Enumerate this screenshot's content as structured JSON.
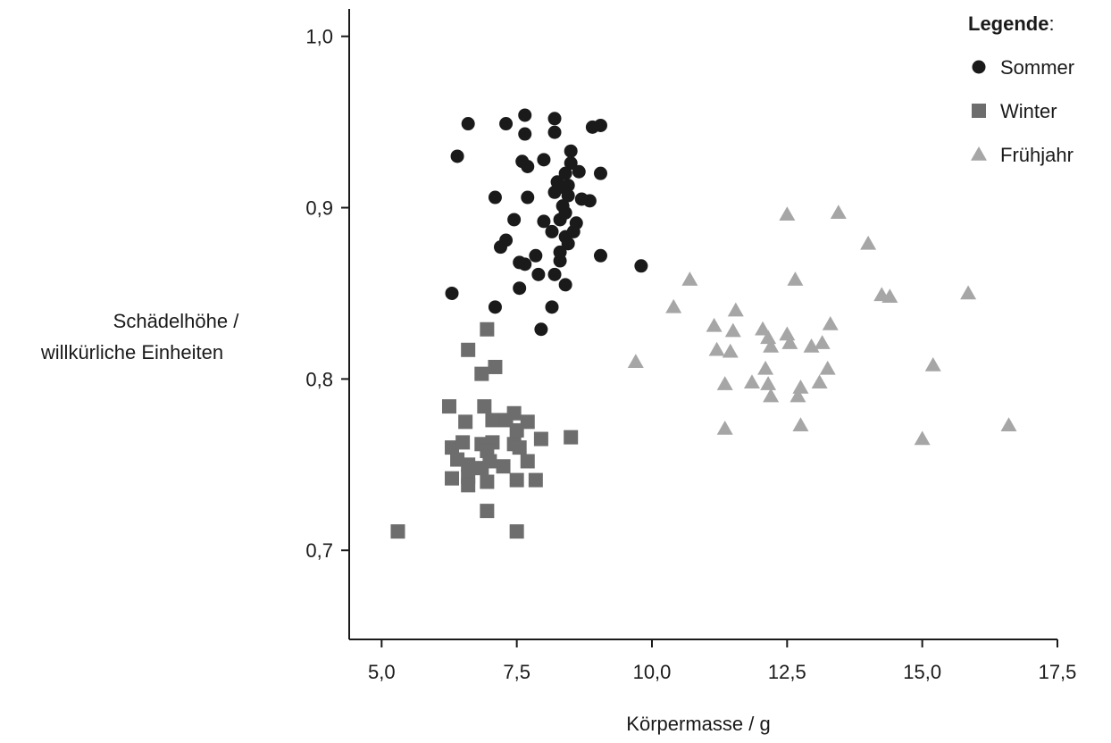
{
  "legend": {
    "title": "Legende",
    "title_suffix": ":"
  },
  "chart_data": {
    "type": "scatter",
    "xlabel": "Körpermasse / g",
    "ylabel_line1": "Schädelhöhe /",
    "ylabel_line2": "willkürliche Einheiten",
    "xlim": [
      4.4,
      17.5
    ],
    "ylim": [
      0.648,
      1.016
    ],
    "xticks": [
      5.0,
      7.5,
      10.0,
      12.5,
      15.0,
      17.5
    ],
    "xtick_labels": [
      "5,0",
      "7,5",
      "10,0",
      "12,5",
      "15,0",
      "17,5"
    ],
    "yticks": [
      0.7,
      0.8,
      0.9,
      1.0
    ],
    "ytick_labels": [
      "0,7",
      "0,8",
      "0,9",
      "1,0"
    ],
    "grid": false,
    "legend_position": "top-right",
    "series": [
      {
        "name": "Sommer",
        "marker": "circle",
        "color": "#1a1a1a",
        "points": [
          [
            6.6,
            0.949
          ],
          [
            7.3,
            0.949
          ],
          [
            7.65,
            0.954
          ],
          [
            8.2,
            0.952
          ],
          [
            8.9,
            0.947
          ],
          [
            9.05,
            0.948
          ],
          [
            6.4,
            0.93
          ],
          [
            7.6,
            0.927
          ],
          [
            7.7,
            0.924
          ],
          [
            8.0,
            0.928
          ],
          [
            8.5,
            0.933
          ],
          [
            8.5,
            0.926
          ],
          [
            8.65,
            0.921
          ],
          [
            9.05,
            0.92
          ],
          [
            7.1,
            0.906
          ],
          [
            7.7,
            0.906
          ],
          [
            8.2,
            0.909
          ],
          [
            8.25,
            0.915
          ],
          [
            8.35,
            0.912
          ],
          [
            8.45,
            0.907
          ],
          [
            8.7,
            0.905
          ],
          [
            8.85,
            0.904
          ],
          [
            7.45,
            0.893
          ],
          [
            8.0,
            0.892
          ],
          [
            8.3,
            0.893
          ],
          [
            8.6,
            0.891
          ],
          [
            7.3,
            0.881
          ],
          [
            7.2,
            0.877
          ],
          [
            8.15,
            0.886
          ],
          [
            8.4,
            0.883
          ],
          [
            8.55,
            0.886
          ],
          [
            8.45,
            0.879
          ],
          [
            7.85,
            0.872
          ],
          [
            7.55,
            0.868
          ],
          [
            7.65,
            0.867
          ],
          [
            8.3,
            0.874
          ],
          [
            8.3,
            0.869
          ],
          [
            9.05,
            0.872
          ],
          [
            7.9,
            0.861
          ],
          [
            8.2,
            0.861
          ],
          [
            8.4,
            0.855
          ],
          [
            7.55,
            0.853
          ],
          [
            6.3,
            0.85
          ],
          [
            7.1,
            0.842
          ],
          [
            8.15,
            0.842
          ],
          [
            9.8,
            0.866
          ],
          [
            7.95,
            0.829
          ],
          [
            7.65,
            0.943
          ],
          [
            8.2,
            0.944
          ],
          [
            8.35,
            0.901
          ],
          [
            8.4,
            0.897
          ],
          [
            8.45,
            0.913
          ],
          [
            8.4,
            0.92
          ]
        ]
      },
      {
        "name": "Winter",
        "marker": "square",
        "color": "#6d6d6d",
        "points": [
          [
            6.95,
            0.829
          ],
          [
            6.6,
            0.817
          ],
          [
            7.1,
            0.807
          ],
          [
            6.85,
            0.803
          ],
          [
            6.25,
            0.784
          ],
          [
            6.9,
            0.784
          ],
          [
            6.55,
            0.775
          ],
          [
            7.05,
            0.776
          ],
          [
            7.3,
            0.776
          ],
          [
            7.45,
            0.78
          ],
          [
            7.7,
            0.775
          ],
          [
            7.5,
            0.77
          ],
          [
            6.3,
            0.76
          ],
          [
            6.5,
            0.763
          ],
          [
            6.85,
            0.762
          ],
          [
            7.05,
            0.763
          ],
          [
            7.45,
            0.762
          ],
          [
            7.55,
            0.76
          ],
          [
            7.95,
            0.765
          ],
          [
            8.5,
            0.766
          ],
          [
            6.4,
            0.753
          ],
          [
            6.6,
            0.75
          ],
          [
            6.85,
            0.748
          ],
          [
            7.0,
            0.752
          ],
          [
            7.25,
            0.749
          ],
          [
            7.7,
            0.752
          ],
          [
            6.3,
            0.742
          ],
          [
            6.6,
            0.743
          ],
          [
            6.6,
            0.738
          ],
          [
            6.95,
            0.74
          ],
          [
            7.5,
            0.741
          ],
          [
            7.85,
            0.741
          ],
          [
            6.95,
            0.723
          ],
          [
            5.3,
            0.711
          ],
          [
            7.5,
            0.711
          ],
          [
            6.95,
            0.758
          ]
        ]
      },
      {
        "name": "Frühjahr",
        "marker": "triangle",
        "color": "#a6a6a6",
        "points": [
          [
            12.5,
            0.896
          ],
          [
            13.45,
            0.897
          ],
          [
            14.0,
            0.879
          ],
          [
            10.7,
            0.858
          ],
          [
            12.65,
            0.858
          ],
          [
            14.25,
            0.849
          ],
          [
            14.4,
            0.848
          ],
          [
            15.85,
            0.85
          ],
          [
            10.4,
            0.842
          ],
          [
            11.55,
            0.84
          ],
          [
            11.15,
            0.831
          ],
          [
            11.5,
            0.828
          ],
          [
            12.05,
            0.829
          ],
          [
            12.5,
            0.826
          ],
          [
            13.3,
            0.832
          ],
          [
            12.15,
            0.824
          ],
          [
            12.55,
            0.821
          ],
          [
            12.95,
            0.819
          ],
          [
            13.15,
            0.821
          ],
          [
            12.2,
            0.819
          ],
          [
            11.2,
            0.817
          ],
          [
            11.45,
            0.816
          ],
          [
            9.7,
            0.81
          ],
          [
            12.1,
            0.806
          ],
          [
            13.25,
            0.806
          ],
          [
            15.2,
            0.808
          ],
          [
            11.35,
            0.797
          ],
          [
            11.85,
            0.798
          ],
          [
            12.15,
            0.797
          ],
          [
            12.75,
            0.795
          ],
          [
            13.1,
            0.798
          ],
          [
            12.2,
            0.79
          ],
          [
            12.7,
            0.79
          ],
          [
            11.35,
            0.771
          ],
          [
            12.75,
            0.773
          ],
          [
            15.0,
            0.765
          ],
          [
            16.6,
            0.773
          ]
        ]
      }
    ]
  }
}
